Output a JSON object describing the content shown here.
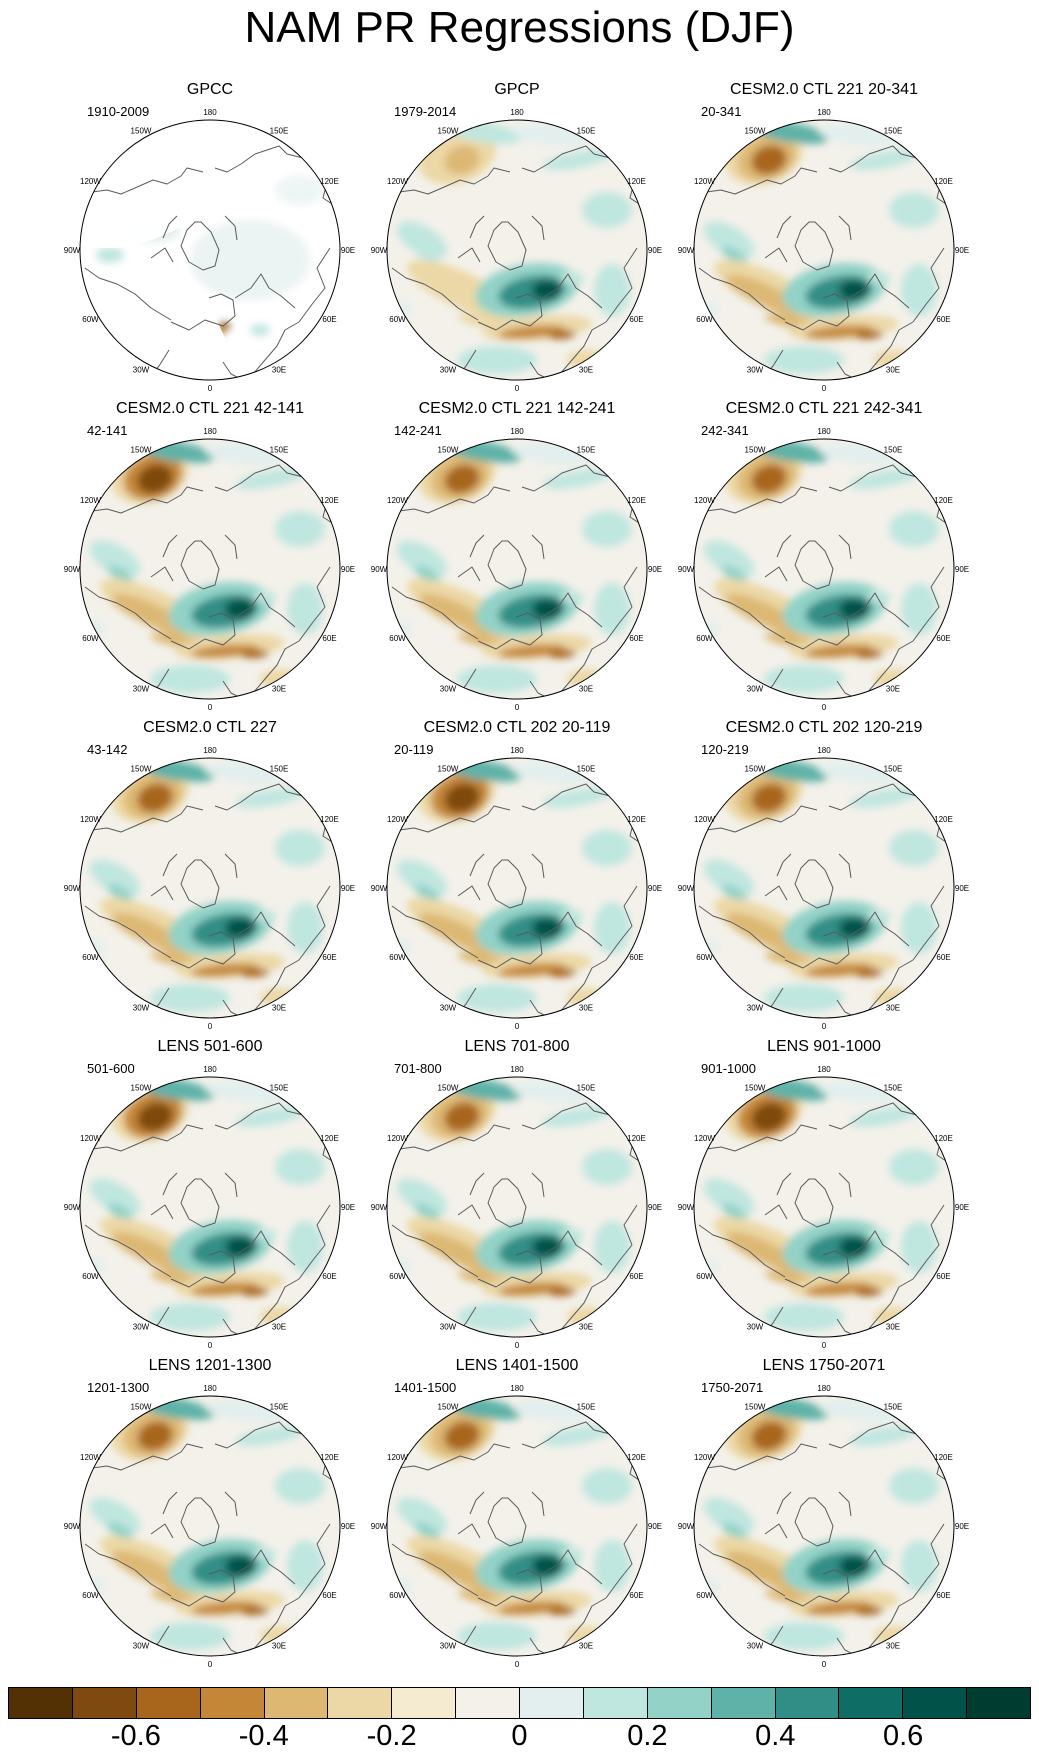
{
  "title": "NAM PR Regressions (DJF)",
  "longitude_labels": [
    "180",
    "150E",
    "120E",
    "90E",
    "60E",
    "30E",
    "0",
    "30W",
    "60W",
    "90W",
    "120W",
    "150W"
  ],
  "panels": [
    {
      "title": "GPCC",
      "period": "1910-2009",
      "style": "gpcc"
    },
    {
      "title": "GPCP",
      "period": "1979-2014",
      "style": "weak"
    },
    {
      "title": "CESM2.0 CTL 221 20-341",
      "period": "20-341",
      "style": "model"
    },
    {
      "title": "CESM2.0 CTL 221 42-141",
      "period": "42-141",
      "style": "strong"
    },
    {
      "title": "CESM2.0 CTL 221 142-241",
      "period": "142-241",
      "style": "model"
    },
    {
      "title": "CESM2.0 CTL 221 242-341",
      "period": "242-341",
      "style": "model"
    },
    {
      "title": "CESM2.0 CTL 227",
      "period": "43-142",
      "style": "model"
    },
    {
      "title": "CESM2.0 CTL 202 20-119",
      "period": "20-119",
      "style": "strong"
    },
    {
      "title": "CESM2.0 CTL 202 120-219",
      "period": "120-219",
      "style": "model"
    },
    {
      "title": "LENS 501-600",
      "period": "501-600",
      "style": "strong"
    },
    {
      "title": "LENS 701-800",
      "period": "701-800",
      "style": "model"
    },
    {
      "title": "LENS 901-1000",
      "period": "901-1000",
      "style": "strong"
    },
    {
      "title": "LENS 1201-1300",
      "period": "1201-1300",
      "style": "model"
    },
    {
      "title": "LENS 1401-1500",
      "period": "1401-1500",
      "style": "model"
    },
    {
      "title": "LENS 1750-2071",
      "period": "1750-2071",
      "style": "model"
    }
  ],
  "colorbar": {
    "colors": [
      "#543005",
      "#7f4a10",
      "#a8661c",
      "#c48637",
      "#ddb873",
      "#ecd8a6",
      "#f5ebd1",
      "#f3f1ea",
      "#e2efee",
      "#c0e6e0",
      "#92d2c7",
      "#5fb2a8",
      "#318e86",
      "#0e6e66",
      "#01534a",
      "#003c30"
    ],
    "tick_labels": [
      "-0.6",
      "-0.4",
      "-0.2",
      "0",
      "0.2",
      "0.4",
      "0.6"
    ],
    "tick_values": [
      -0.6,
      -0.4,
      -0.2,
      0,
      0.2,
      0.4,
      0.6
    ]
  }
}
